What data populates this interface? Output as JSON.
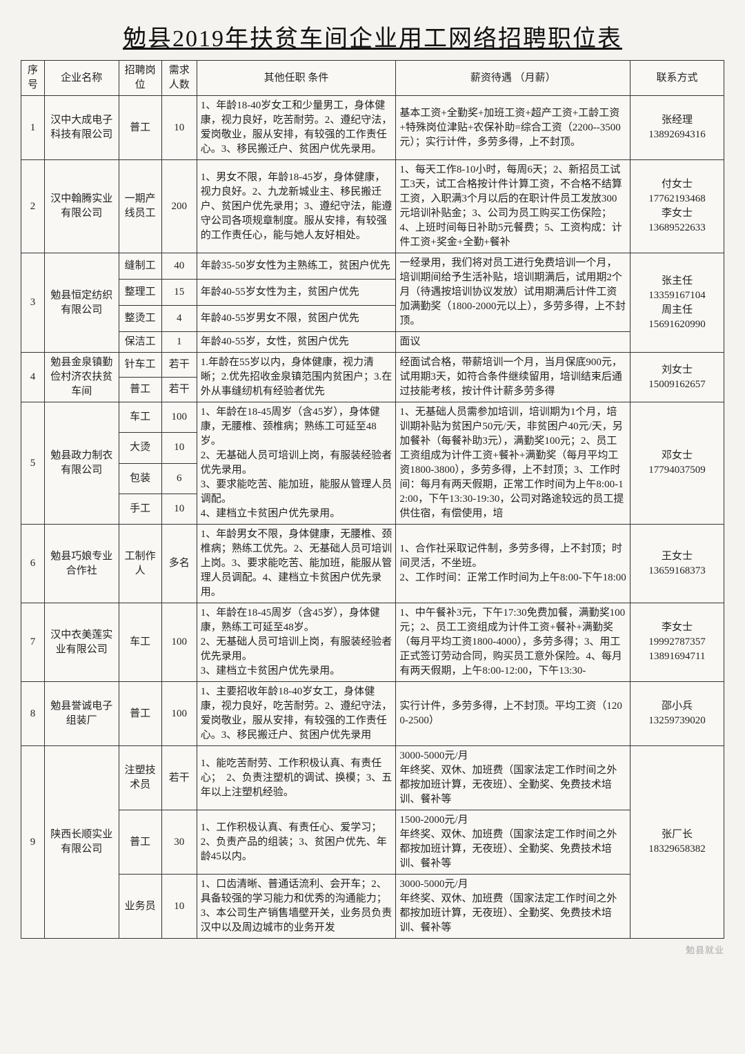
{
  "title": "勉县2019年扶贫车间企业用工网络招聘职位表",
  "headers": [
    "序号",
    "企业名称",
    "招聘岗位",
    "需求人数",
    "其他任职\n条件",
    "薪资待遇\n（月薪）",
    "联系方式"
  ],
  "watermark": "勉县就业",
  "rows": [
    {
      "no": "1",
      "company": "汉中大成电子科技有限公司",
      "pos": "普工",
      "cnt": "10",
      "req": "1、年龄18-40岁女工和少量男工，身体健康，视力良好，吃苦耐劳。2、遵纪守法，爱岗敬业，服从安排，有较强的工作责任心。3、移民搬迁户、贫困户优先录用。",
      "sal": "基本工资+全勤奖+加班工资+超产工资+工龄工资+特殊岗位津贴+农保补助=综合工资（2200--3500元）；实行计件，多劳多得，上不封顶。",
      "con": "张经理\n13892694316"
    },
    {
      "no": "2",
      "company": "汉中翰腾实业有限公司",
      "pos": "一期产线员工",
      "cnt": "200",
      "req": "1、男女不限，年龄18-45岁，身体健康，视力良好。2、九龙新城业主、移民搬迁户、贫困户优先录用；3、遵纪守法，能遵守公司各项规章制度。服从安排，有较强的工作责任心，能与她人友好相处。",
      "sal": "1、每天工作8-10小时，每周6天；2、新招员工试工3天，试工合格按计件计算工资，不合格不结算工资，入职满3个月以后的在职计件员工发放300元培训补贴金；3、公司为员工购买工伤保险；4、上班时间每日补助5元餐费；5、工资构成：计件工资+奖金+全勤+餐补",
      "con": "付女士\n17762193468\n李女士\n13689522633"
    },
    {
      "no": "3",
      "company": "勉县恒定纺织有限公司",
      "span": 4,
      "sub": [
        {
          "pos": "缝制工",
          "cnt": "40",
          "req": "年龄35-50岁女性为主熟练工，贫困户优先",
          "sal": "一经录用，我们将对员工进行免费培训一个月，培训期间给予生活补贴，培训期满后，试用期2个月（待遇按培训协议发放）试用期满后计件工资加满勤奖（1800-2000元以上），多劳多得，上不封顶。",
          "sal_span": 3
        },
        {
          "pos": "整理工",
          "cnt": "15",
          "req": "年龄40-55岁女性为主，贫困户优先"
        },
        {
          "pos": "整烫工",
          "cnt": "4",
          "req": "年龄40-55岁男女不限，贫困户优先"
        },
        {
          "pos": "保洁工",
          "cnt": "1",
          "req": "年龄40-55岁，女性，贫困户优先",
          "sal": "面议"
        }
      ],
      "con": "张主任\n13359167104\n周主任\n15691620990"
    },
    {
      "no": "4",
      "company": "勉县金泉镇勤俭村济农扶贫车间",
      "span": 2,
      "sub": [
        {
          "pos": "针车工",
          "cnt": "若干",
          "req": "1.年龄在55岁以内，身体健康，视力清晰；2.优先招收金泉镇范围内贫困户；3.在外从事缝纫机有经验者优先",
          "sal": "经面试合格，带薪培训一个月，当月保底900元，试用期3天，如符合条件继续留用，培训结束后通过技能考核，按计件计薪多劳多得",
          "req_span": 2,
          "sal_span": 2
        },
        {
          "pos": "普工",
          "cnt": "若干"
        }
      ],
      "con": "刘女士\n15009162657"
    },
    {
      "no": "5",
      "company": "勉县政力制衣有限公司",
      "span": 4,
      "sub": [
        {
          "pos": "车工",
          "cnt": "100",
          "req": "1、年龄在18-45周岁（含45岁），身体健康，无腰椎、颈椎病；熟练工可延至48岁。\n2、无基础人员可培训上岗，有服装经验者优先录用。\n3、要求能吃苦、能加班，能服从管理人员调配。\n4、建档立卡贫困户优先录用。",
          "sal": "1、无基础人员需参加培训，培训期为1个月，培训期补贴为贫困户50元/天，非贫困户40元/天，另加餐补（每餐补助3元），满勤奖100元；2、员工工资组成为计件工资+餐补+满勤奖（每月平均工资1800-3800），多劳多得，上不封顶；3、工作时间：每月有两天假期，正常工作时间为上午8:00-12:00，下午13:30-19:30，公司对路途较远的员工提供住宿，有偿使用，培",
          "req_span": 4,
          "sal_span": 4
        },
        {
          "pos": "大烫",
          "cnt": "10"
        },
        {
          "pos": "包装",
          "cnt": "6"
        },
        {
          "pos": "手工",
          "cnt": "10"
        }
      ],
      "con": "邓女士\n17794037509"
    },
    {
      "no": "6",
      "company": "勉县巧娘专业合作社",
      "pos": "工制作人",
      "cnt": "多名",
      "req": "1、年龄男女不限，身体健康，无腰椎、颈椎病；熟练工优先。2、无基础人员可培训上岗。3、要求能吃苦、能加班，能服从管理人员调配。4、建档立卡贫困户优先录用。",
      "sal": "1、合作社采取记件制，多劳多得，上不封顶；时间灵活，不坐班。\n2、工作时间：正常工作时间为上午8:00-下午18:00",
      "con": "王女士\n13659168373"
    },
    {
      "no": "7",
      "company": "汉中衣美莲实业有限公司",
      "pos": "车工",
      "cnt": "100",
      "req": "1、年龄在18-45周岁（含45岁），身体健康，熟练工可延至48岁。\n2、无基础人员可培训上岗，有服装经验者优先录用。\n3、建档立卡贫困户优先录用。",
      "sal": "1、中午餐补3元，下午17:30免费加餐，满勤奖100元；2、员工工资组成为计件工资+餐补+满勤奖（每月平均工资1800-4000），多劳多得；3、用工正式签订劳动合同，购买员工意外保险。4、每月有两天假期，上午8:00-12:00，下午13:30-",
      "con": "李女士\n19992787357\n13891694711"
    },
    {
      "no": "8",
      "company": "勉县誉诚电子组装厂",
      "pos": "普工",
      "cnt": "100",
      "req": "1、主要招收年龄18-40岁女工，身体健康，视力良好，吃苦耐劳。2、遵纪守法，爱岗敬业，服从安排，有较强的工作责任心。3、移民搬迁户、贫困户优先录用",
      "sal": "实行计件，多劳多得，上不封顶。平均工资（1200-2500）",
      "con": "邵小兵\n13259739020"
    },
    {
      "no": "9",
      "company": "陕西长顺实业有限公司",
      "span": 3,
      "sub": [
        {
          "pos": "注塑技术员",
          "cnt": "若干",
          "req": "1、能吃苦耐劳、工作积极认真、有责任心；　2、负责注塑机的调试、换模；3、五年以上注塑机经验。",
          "sal": "3000-5000元/月\n年终奖、双休、加班费（国家法定工作时间之外都按加班计算，无夜班）、全勤奖、免费技术培训、餐补等"
        },
        {
          "pos": "普工",
          "cnt": "30",
          "req": "1、工作积极认真、有责任心、爱学习；　2、负责产品的组装；3、贫困户优先、年龄45以内。",
          "sal": "1500-2000元/月\n年终奖、双休、加班费（国家法定工作时间之外都按加班计算，无夜班）、全勤奖、免费技术培训、餐补等"
        },
        {
          "pos": "业务员",
          "cnt": "10",
          "req": "1、口齿清晰、普通话流利、会开车；2、具备较强的学习能力和优秀的沟通能力；3、本公司生产销售墙壁开关，业务员负责汉中以及周边城市的业务开发",
          "sal": "3000-5000元/月\n年终奖、双休、加班费（国家法定工作时间之外都按加班计算，无夜班）、全勤奖、免费技术培训、餐补等"
        }
      ],
      "con": "张厂长\n18329658382"
    }
  ]
}
